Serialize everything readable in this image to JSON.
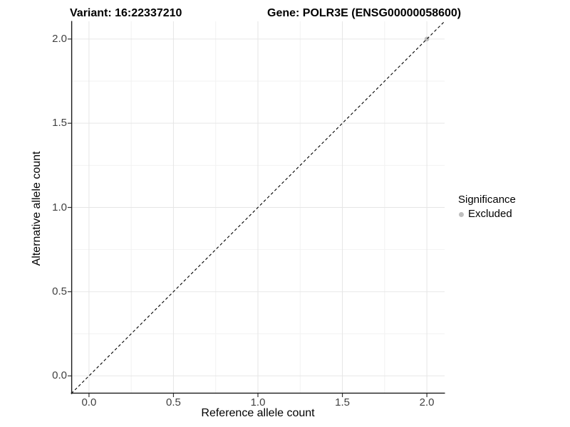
{
  "window": {
    "background": "#FFFFFF",
    "accent_gray": "#BEBEBE"
  },
  "chart_data": {
    "type": "scatter",
    "title_left": "Variant: 16:22337210",
    "title_right": "Gene: POLR3E (ENSG00000058600)",
    "xlabel": "Reference allele count",
    "ylabel": "Alternative allele count",
    "xlim": [
      -0.105,
      2.105
    ],
    "ylim": [
      -0.105,
      2.105
    ],
    "xticks": {
      "values": [
        0,
        0.5,
        1,
        1.5,
        2
      ],
      "labels": [
        "0.0",
        "0.5",
        "1.0",
        "1.5",
        "2.0"
      ]
    },
    "yticks": {
      "values": [
        0,
        0.5,
        1,
        1.5,
        2
      ],
      "labels": [
        "0.0",
        "0.5",
        "1.0",
        "1.5",
        "2.0"
      ]
    },
    "minor_grid_values": [
      0.25,
      0.75,
      1.25,
      1.75
    ],
    "grid": {
      "show": true,
      "major_color": "#E6E6E6",
      "minor_color": "#F2F2F2"
    },
    "axis": {
      "line_color": "#1A1A1A",
      "tick_color": "#333333",
      "tick_label_color": "#404040"
    },
    "reference_line": {
      "kind": "identity",
      "dash": "dashed",
      "color": "#000000"
    },
    "series": [
      {
        "name": "Excluded",
        "color": "#BEBEBE",
        "marker": "circle",
        "points": [
          {
            "x": 2.0,
            "y": 2.0
          }
        ]
      }
    ],
    "legend": {
      "title": "Significance",
      "position": "right",
      "items": [
        {
          "label": "Excluded",
          "color": "#BEBEBE"
        }
      ]
    }
  }
}
